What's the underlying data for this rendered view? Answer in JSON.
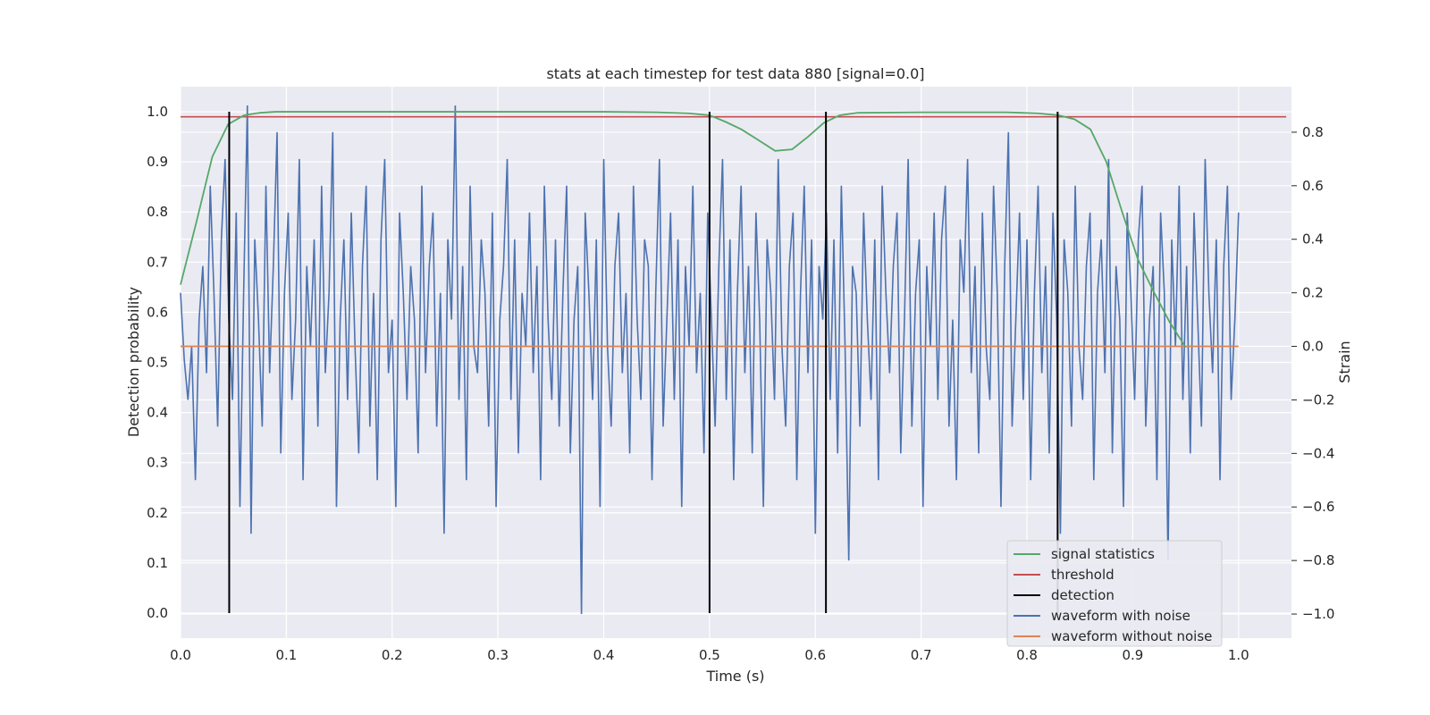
{
  "chart_data": {
    "type": "line",
    "title": "stats at each timestep for test data 880 [signal=0.0]",
    "xlabel": "Time (s)",
    "ylabel_left": "Detection probability",
    "ylabel_right": "Strain",
    "xlim": [
      0.0,
      1.05
    ],
    "ylim_left": [
      -0.05,
      1.05
    ],
    "ylim_right": [
      -1.09,
      0.97
    ],
    "grid": true,
    "legend_position": "lower-right",
    "x_ticks": [
      0.0,
      0.1,
      0.2,
      0.3,
      0.4,
      0.5,
      0.6,
      0.7,
      0.8,
      0.9,
      1.0
    ],
    "x_tick_labels": [
      "0.0",
      "0.1",
      "0.2",
      "0.3",
      "0.4",
      "0.5",
      "0.6",
      "0.7",
      "0.8",
      "0.9",
      "1.0"
    ],
    "y_left_ticks": [
      0.0,
      0.1,
      0.2,
      0.3,
      0.4,
      0.5,
      0.6,
      0.7,
      0.8,
      0.9,
      1.0
    ],
    "y_left_tick_labels": [
      "0.0",
      "0.1",
      "0.2",
      "0.3",
      "0.4",
      "0.5",
      "0.6",
      "0.7",
      "0.8",
      "0.9",
      "1.0"
    ],
    "y_right_ticks": [
      -1.0,
      -0.8,
      -0.6,
      -0.4,
      -0.2,
      0.0,
      0.2,
      0.4,
      0.6,
      0.8
    ],
    "y_right_tick_labels": [
      "−1.0",
      "−0.8",
      "−0.6",
      "−0.4",
      "−0.2",
      "0.0",
      "0.2",
      "0.4",
      "0.6",
      "0.8"
    ],
    "series": [
      {
        "name": "signal statistics",
        "axis": "left",
        "color": "#55a868",
        "x": [
          0.0,
          0.015,
          0.03,
          0.045,
          0.06,
          0.075,
          0.09,
          0.2,
          0.3,
          0.4,
          0.45,
          0.48,
          0.5,
          0.515,
          0.53,
          0.545,
          0.562,
          0.578,
          0.593,
          0.608,
          0.623,
          0.64,
          0.7,
          0.78,
          0.81,
          0.83,
          0.845,
          0.86,
          0.875,
          0.89,
          0.905,
          0.92,
          0.935,
          0.95
        ],
        "y": [
          0.655,
          0.78,
          0.91,
          0.975,
          0.993,
          0.998,
          1.0,
          1.0,
          1.0,
          1.0,
          0.999,
          0.997,
          0.993,
          0.98,
          0.965,
          0.945,
          0.922,
          0.925,
          0.95,
          0.978,
          0.993,
          0.998,
          0.999,
          0.999,
          0.997,
          0.993,
          0.985,
          0.965,
          0.9,
          0.8,
          0.705,
          0.64,
          0.58,
          0.53
        ]
      },
      {
        "name": "threshold",
        "axis": "left",
        "color": "#c44e52",
        "x": [
          0.0,
          1.045
        ],
        "y": [
          0.99,
          0.99
        ]
      },
      {
        "name": "detection",
        "axis": "left",
        "color": "#000000",
        "x_positions": [
          0.046,
          0.5,
          0.61,
          0.829
        ],
        "y_range": [
          0.0,
          1.0
        ]
      },
      {
        "name": "waveform with noise",
        "axis": "right",
        "color": "#4c72b0",
        "x_range": [
          0.0,
          1.0
        ],
        "y": [
          0.2,
          -0.05,
          -0.2,
          0.0,
          -0.5,
          0.1,
          0.3,
          -0.1,
          0.6,
          0.2,
          -0.3,
          0.4,
          0.7,
          0.1,
          -0.2,
          0.5,
          -0.6,
          0.2,
          0.9,
          -0.7,
          0.4,
          0.1,
          -0.3,
          0.6,
          -0.1,
          0.3,
          0.8,
          -0.4,
          0.2,
          0.5,
          -0.2,
          0.1,
          0.7,
          -0.5,
          0.3,
          0.0,
          0.4,
          -0.3,
          0.6,
          -0.1,
          0.2,
          0.8,
          -0.6,
          0.1,
          0.4,
          -0.2,
          0.5,
          0.0,
          -0.4,
          0.3,
          0.6,
          -0.3,
          0.2,
          -0.5,
          0.4,
          0.7,
          -0.1,
          0.1,
          -0.6,
          0.5,
          0.2,
          -0.2,
          0.3,
          0.1,
          -0.4,
          0.6,
          -0.1,
          0.3,
          0.5,
          -0.3,
          0.2,
          -0.7,
          0.4,
          0.1,
          0.9,
          -0.2,
          0.3,
          -0.5,
          0.6,
          0.0,
          -0.1,
          0.4,
          0.2,
          -0.3,
          0.5,
          -0.6,
          0.1,
          0.3,
          0.7,
          -0.2,
          0.4,
          -0.4,
          0.2,
          0.0,
          0.5,
          -0.1,
          0.3,
          -0.5,
          0.6,
          0.1,
          -0.2,
          0.4,
          -0.3,
          0.2,
          0.6,
          -0.4,
          0.1,
          0.3,
          -1.0,
          0.5,
          0.2,
          -0.2,
          0.4,
          -0.6,
          0.7,
          0.0,
          -0.3,
          0.3,
          0.5,
          -0.1,
          0.2,
          -0.4,
          0.6,
          0.1,
          -0.2,
          0.4,
          0.3,
          -0.5,
          0.2,
          0.7,
          -0.3,
          0.1,
          0.5,
          -0.2,
          0.4,
          -0.6,
          0.3,
          0.0,
          0.6,
          -0.1,
          0.2,
          -0.4,
          0.5,
          0.1,
          -0.3,
          0.3,
          0.7,
          -0.2,
          0.4,
          -0.5,
          0.2,
          0.6,
          -0.1,
          0.3,
          -0.4,
          0.5,
          0.1,
          -0.6,
          0.4,
          0.2,
          -0.2,
          0.7,
          0.0,
          -0.3,
          0.3,
          0.5,
          -0.5,
          0.2,
          0.6,
          -0.1,
          0.4,
          -0.7,
          0.3,
          0.1,
          0.5,
          -0.2,
          0.4,
          -0.4,
          0.6,
          0.0,
          -0.8,
          0.3,
          0.2,
          -0.3,
          0.5,
          0.1,
          -0.2,
          0.4,
          -0.5,
          0.6,
          0.2,
          -0.1,
          0.3,
          0.5,
          -0.4,
          0.1,
          0.7,
          -0.3,
          0.2,
          0.4,
          -0.6,
          0.3,
          0.0,
          0.5,
          -0.2,
          0.4,
          0.6,
          -0.3,
          0.1,
          -0.5,
          0.4,
          0.2,
          0.7,
          -0.1,
          0.3,
          -0.4,
          0.5,
          0.0,
          -0.2,
          0.6,
          0.2,
          -0.6,
          0.3,
          0.8,
          -0.3,
          0.1,
          0.5,
          -0.2,
          0.4,
          -0.5,
          0.2,
          0.6,
          -0.1,
          0.3,
          -0.4,
          0.5,
          0.1,
          -0.7,
          0.4,
          0.2,
          -0.3,
          0.6,
          0.0,
          -0.2,
          0.3,
          0.5,
          -0.5,
          0.2,
          0.4,
          -0.1,
          0.7,
          -0.4,
          0.3,
          0.1,
          -0.6,
          0.5,
          0.2,
          -0.2,
          0.4,
          0.6,
          -0.3,
          0.1,
          0.3,
          -0.5,
          0.5,
          0.2,
          -0.8,
          0.4,
          0.0,
          0.6,
          -0.2,
          0.3,
          -0.4,
          0.5,
          0.1,
          -0.3,
          0.7,
          0.2,
          -0.1,
          0.4,
          -0.5,
          0.3,
          0.6,
          -0.2,
          0.1,
          0.5
        ]
      },
      {
        "name": "waveform without noise",
        "axis": "right",
        "color": "#dd8452",
        "x": [
          0.0,
          1.0
        ],
        "y": [
          0.0,
          0.0
        ]
      }
    ]
  }
}
